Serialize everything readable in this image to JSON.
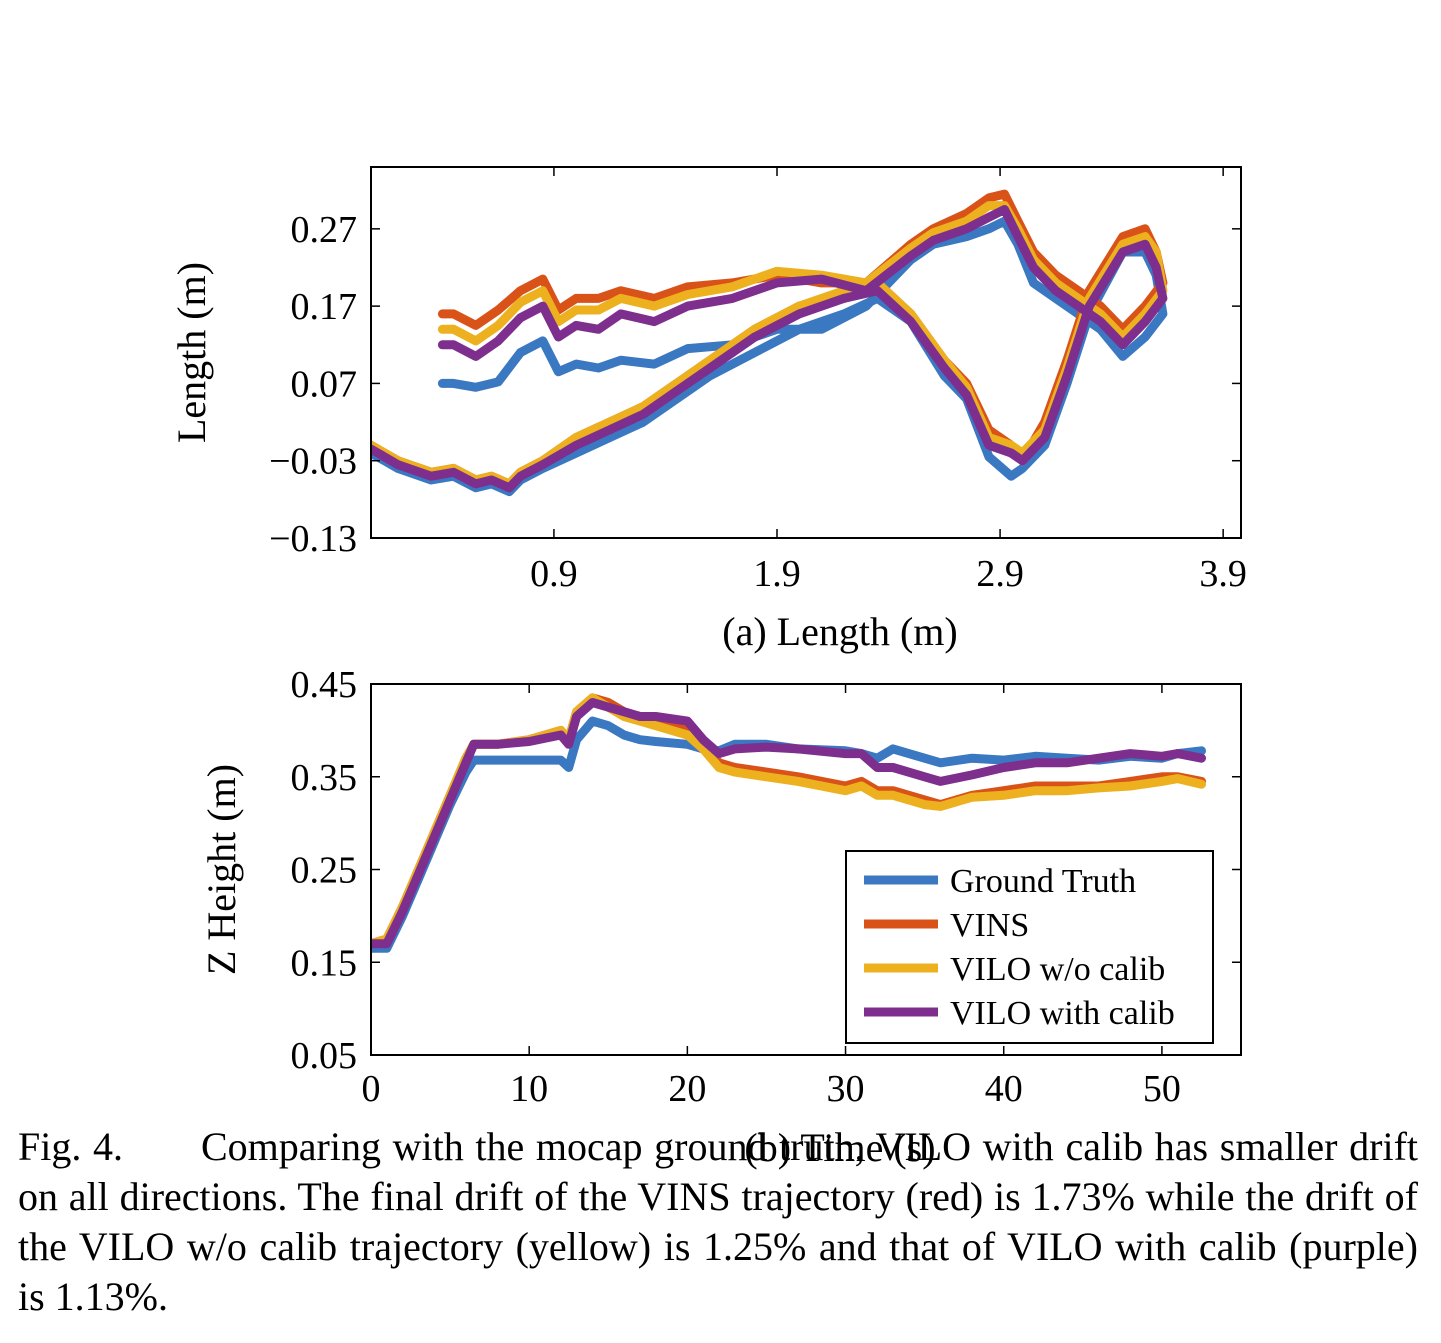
{
  "chart_data": [
    {
      "type": "line",
      "subcaption": "(a) Length (m)",
      "xlabel": "",
      "ylabel": "Length (m)",
      "xlim": [
        0.08,
        3.98
      ],
      "ylim": [
        -0.13,
        0.35
      ],
      "xticks": [
        "0.9",
        "1.9",
        "2.9",
        "3.9"
      ],
      "yticks": [
        "0.27",
        "0.17",
        "0.07",
        "−0.03",
        "−0.13"
      ],
      "grid": false,
      "series": [
        {
          "name": "Ground Truth",
          "color": "#3b78c2",
          "x": [
            0.4,
            0.45,
            0.55,
            0.65,
            0.75,
            0.85,
            0.92,
            1.0,
            1.1,
            1.2,
            1.35,
            1.5,
            1.7,
            1.9,
            2.1,
            2.3,
            2.5,
            2.6,
            2.75,
            2.85,
            2.92,
            2.98,
            3.05,
            3.15,
            3.25,
            3.35,
            3.45,
            3.55,
            3.63,
            3.6,
            3.55,
            3.45,
            3.3,
            3.2,
            3.1,
            3.0,
            2.95,
            2.85,
            2.75,
            2.65,
            2.5,
            2.35,
            2.2,
            2.0,
            1.8,
            1.6,
            1.45,
            1.3,
            1.15,
            1.0,
            0.85,
            0.75,
            0.7,
            0.62,
            0.55,
            0.45,
            0.35,
            0.2,
            0.08
          ],
          "y": [
            0.07,
            0.07,
            0.065,
            0.072,
            0.11,
            0.125,
            0.085,
            0.095,
            0.09,
            0.1,
            0.095,
            0.115,
            0.12,
            0.14,
            0.14,
            0.17,
            0.23,
            0.25,
            0.26,
            0.27,
            0.28,
            0.25,
            0.2,
            0.18,
            0.16,
            0.14,
            0.105,
            0.13,
            0.16,
            0.21,
            0.24,
            0.24,
            0.16,
            0.07,
            -0.01,
            -0.04,
            -0.05,
            -0.025,
            0.05,
            0.08,
            0.15,
            0.18,
            0.16,
            0.14,
            0.11,
            0.08,
            0.05,
            0.02,
            0.0,
            -0.02,
            -0.04,
            -0.055,
            -0.07,
            -0.06,
            -0.065,
            -0.05,
            -0.055,
            -0.04,
            -0.02
          ]
        },
        {
          "name": "VINS",
          "color": "#d95319",
          "x": [
            0.4,
            0.45,
            0.55,
            0.65,
            0.75,
            0.85,
            0.92,
            1.0,
            1.1,
            1.2,
            1.35,
            1.5,
            1.7,
            1.9,
            2.1,
            2.3,
            2.5,
            2.6,
            2.75,
            2.85,
            2.92,
            2.98,
            3.05,
            3.15,
            3.25,
            3.35,
            3.45,
            3.55,
            3.63,
            3.6,
            3.55,
            3.45,
            3.3,
            3.2,
            3.1,
            3.0,
            2.95,
            2.85,
            2.75,
            2.65,
            2.5,
            2.35,
            2.2,
            2.0,
            1.8,
            1.6,
            1.45,
            1.3,
            1.15,
            1.0,
            0.85,
            0.75,
            0.7,
            0.62,
            0.55,
            0.45,
            0.35,
            0.2,
            0.08
          ],
          "y": [
            0.16,
            0.16,
            0.145,
            0.165,
            0.19,
            0.205,
            0.165,
            0.18,
            0.18,
            0.19,
            0.18,
            0.195,
            0.2,
            0.21,
            0.2,
            0.2,
            0.25,
            0.27,
            0.29,
            0.31,
            0.315,
            0.28,
            0.24,
            0.21,
            0.19,
            0.17,
            0.14,
            0.17,
            0.2,
            0.24,
            0.27,
            0.26,
            0.19,
            0.1,
            0.02,
            -0.03,
            -0.01,
            0.01,
            0.07,
            0.1,
            0.16,
            0.2,
            0.18,
            0.17,
            0.14,
            0.1,
            0.07,
            0.04,
            0.02,
            0.0,
            -0.03,
            -0.045,
            -0.06,
            -0.05,
            -0.055,
            -0.04,
            -0.045,
            -0.03,
            -0.01
          ]
        },
        {
          "name": "VILO w/o calib",
          "color": "#edb120",
          "x": [
            0.4,
            0.45,
            0.55,
            0.65,
            0.75,
            0.85,
            0.92,
            1.0,
            1.1,
            1.2,
            1.35,
            1.5,
            1.7,
            1.9,
            2.1,
            2.3,
            2.5,
            2.6,
            2.75,
            2.85,
            2.92,
            2.98,
            3.05,
            3.15,
            3.25,
            3.35,
            3.45,
            3.55,
            3.63,
            3.6,
            3.55,
            3.45,
            3.3,
            3.2,
            3.1,
            3.0,
            2.95,
            2.85,
            2.75,
            2.65,
            2.5,
            2.35,
            2.2,
            2.0,
            1.8,
            1.6,
            1.45,
            1.3,
            1.15,
            1.0,
            0.85,
            0.75,
            0.7,
            0.62,
            0.55,
            0.45,
            0.35,
            0.2,
            0.08
          ],
          "y": [
            0.14,
            0.14,
            0.125,
            0.145,
            0.175,
            0.19,
            0.15,
            0.165,
            0.165,
            0.18,
            0.17,
            0.185,
            0.195,
            0.215,
            0.21,
            0.2,
            0.245,
            0.265,
            0.28,
            0.3,
            0.3,
            0.27,
            0.23,
            0.2,
            0.18,
            0.16,
            0.13,
            0.16,
            0.19,
            0.24,
            0.26,
            0.25,
            0.18,
            0.09,
            0.01,
            -0.02,
            -0.01,
            0.0,
            0.065,
            0.1,
            0.16,
            0.2,
            0.19,
            0.17,
            0.14,
            0.1,
            0.07,
            0.04,
            0.02,
            0.0,
            -0.03,
            -0.045,
            -0.06,
            -0.05,
            -0.055,
            -0.04,
            -0.045,
            -0.03,
            -0.01
          ]
        },
        {
          "name": "VILO with calib",
          "color": "#7e2f8e",
          "x": [
            0.4,
            0.45,
            0.55,
            0.65,
            0.75,
            0.85,
            0.92,
            1.0,
            1.1,
            1.2,
            1.35,
            1.5,
            1.7,
            1.9,
            2.1,
            2.3,
            2.5,
            2.6,
            2.75,
            2.85,
            2.92,
            2.98,
            3.05,
            3.15,
            3.25,
            3.35,
            3.45,
            3.55,
            3.63,
            3.6,
            3.55,
            3.45,
            3.3,
            3.2,
            3.1,
            3.0,
            2.95,
            2.85,
            2.75,
            2.65,
            2.5,
            2.35,
            2.2,
            2.0,
            1.8,
            1.6,
            1.45,
            1.3,
            1.15,
            1.0,
            0.85,
            0.75,
            0.7,
            0.62,
            0.55,
            0.45,
            0.35,
            0.2,
            0.08
          ],
          "y": [
            0.12,
            0.12,
            0.105,
            0.125,
            0.155,
            0.17,
            0.13,
            0.145,
            0.14,
            0.16,
            0.15,
            0.17,
            0.18,
            0.2,
            0.205,
            0.19,
            0.235,
            0.255,
            0.27,
            0.285,
            0.295,
            0.26,
            0.22,
            0.19,
            0.17,
            0.15,
            0.12,
            0.15,
            0.18,
            0.22,
            0.25,
            0.24,
            0.17,
            0.08,
            0.0,
            -0.03,
            -0.02,
            -0.01,
            0.055,
            0.09,
            0.15,
            0.19,
            0.18,
            0.16,
            0.13,
            0.09,
            0.06,
            0.03,
            0.01,
            -0.01,
            -0.035,
            -0.05,
            -0.065,
            -0.055,
            -0.06,
            -0.045,
            -0.05,
            -0.035,
            -0.015
          ]
        }
      ]
    },
    {
      "type": "line",
      "subcaption": "(b) Time (s)",
      "xlabel": "",
      "ylabel": "Z Height (m)",
      "xlim": [
        0,
        55
      ],
      "ylim": [
        0.05,
        0.45
      ],
      "xticks": [
        "0",
        "10",
        "20",
        "30",
        "40",
        "50"
      ],
      "yticks": [
        "0.45",
        "0.35",
        "0.25",
        "0.15",
        "0.05"
      ],
      "grid": false,
      "legend": {
        "position": "bottom-right",
        "entries": [
          "Ground Truth",
          "VINS",
          "VILO w/o calib",
          "VILO with calib"
        ]
      },
      "series": [
        {
          "name": "Ground Truth",
          "color": "#3b78c2",
          "x": [
            0,
            1,
            2,
            3,
            4,
            5,
            6,
            6.5,
            8,
            10,
            12,
            12.5,
            13,
            14,
            15,
            16,
            17,
            18,
            20,
            21,
            22,
            23,
            25,
            27,
            30,
            31,
            32,
            33,
            35,
            36,
            38,
            40,
            42,
            44,
            46,
            48,
            50,
            51,
            52.5
          ],
          "y": [
            0.165,
            0.165,
            0.2,
            0.24,
            0.28,
            0.32,
            0.355,
            0.368,
            0.368,
            0.368,
            0.368,
            0.36,
            0.39,
            0.41,
            0.405,
            0.395,
            0.39,
            0.388,
            0.385,
            0.38,
            0.378,
            0.385,
            0.385,
            0.38,
            0.378,
            0.375,
            0.37,
            0.38,
            0.37,
            0.365,
            0.37,
            0.368,
            0.372,
            0.37,
            0.368,
            0.372,
            0.37,
            0.375,
            0.378
          ]
        },
        {
          "name": "VINS",
          "color": "#d95319",
          "x": [
            0,
            1,
            2,
            3,
            4,
            5,
            6,
            6.5,
            8,
            10,
            12,
            12.5,
            13,
            14,
            15,
            16,
            17,
            18,
            20,
            21,
            22,
            23,
            25,
            27,
            30,
            31,
            32,
            33,
            35,
            36,
            38,
            40,
            42,
            44,
            46,
            48,
            50,
            51,
            52.5
          ],
          "y": [
            0.17,
            0.175,
            0.21,
            0.25,
            0.29,
            0.33,
            0.37,
            0.385,
            0.385,
            0.39,
            0.4,
            0.39,
            0.42,
            0.435,
            0.43,
            0.42,
            0.415,
            0.41,
            0.405,
            0.385,
            0.365,
            0.36,
            0.355,
            0.35,
            0.34,
            0.345,
            0.335,
            0.335,
            0.325,
            0.32,
            0.33,
            0.335,
            0.34,
            0.34,
            0.34,
            0.345,
            0.35,
            0.35,
            0.345
          ]
        },
        {
          "name": "VILO w/o calib",
          "color": "#edb120",
          "x": [
            0,
            1,
            2,
            3,
            4,
            5,
            6,
            6.5,
            8,
            10,
            12,
            12.5,
            13,
            14,
            15,
            16,
            17,
            18,
            20,
            21,
            22,
            23,
            25,
            27,
            30,
            31,
            32,
            33,
            35,
            36,
            38,
            40,
            42,
            44,
            46,
            48,
            50,
            51,
            52.5
          ],
          "y": [
            0.17,
            0.175,
            0.21,
            0.25,
            0.29,
            0.33,
            0.37,
            0.385,
            0.385,
            0.39,
            0.4,
            0.39,
            0.42,
            0.435,
            0.425,
            0.415,
            0.41,
            0.405,
            0.395,
            0.38,
            0.36,
            0.355,
            0.35,
            0.345,
            0.335,
            0.34,
            0.33,
            0.33,
            0.32,
            0.318,
            0.328,
            0.33,
            0.335,
            0.335,
            0.338,
            0.34,
            0.345,
            0.348,
            0.342
          ]
        },
        {
          "name": "VILO with calib",
          "color": "#7e2f8e",
          "x": [
            0,
            1,
            2,
            3,
            4,
            5,
            6,
            6.5,
            8,
            10,
            12,
            12.5,
            13,
            14,
            15,
            16,
            17,
            18,
            20,
            21,
            22,
            23,
            25,
            27,
            30,
            31,
            32,
            33,
            35,
            36,
            38,
            40,
            42,
            44,
            46,
            48,
            50,
            51,
            52.5
          ],
          "y": [
            0.17,
            0.17,
            0.205,
            0.245,
            0.285,
            0.325,
            0.365,
            0.385,
            0.385,
            0.388,
            0.395,
            0.385,
            0.415,
            0.43,
            0.425,
            0.42,
            0.415,
            0.415,
            0.41,
            0.39,
            0.375,
            0.38,
            0.382,
            0.38,
            0.375,
            0.375,
            0.36,
            0.36,
            0.35,
            0.345,
            0.352,
            0.36,
            0.365,
            0.365,
            0.37,
            0.375,
            0.372,
            0.375,
            0.37
          ]
        }
      ]
    }
  ],
  "caption": {
    "label": "Fig. 4.",
    "text": "Comparing with the mocap ground truth, VILO with calib has smaller drift on all directions. The final drift of the VINS trajectory (red) is 1.73% while the drift of the VILO w/o calib trajectory (yellow) is 1.25% and that of VILO with calib (purple) is 1.13%."
  }
}
